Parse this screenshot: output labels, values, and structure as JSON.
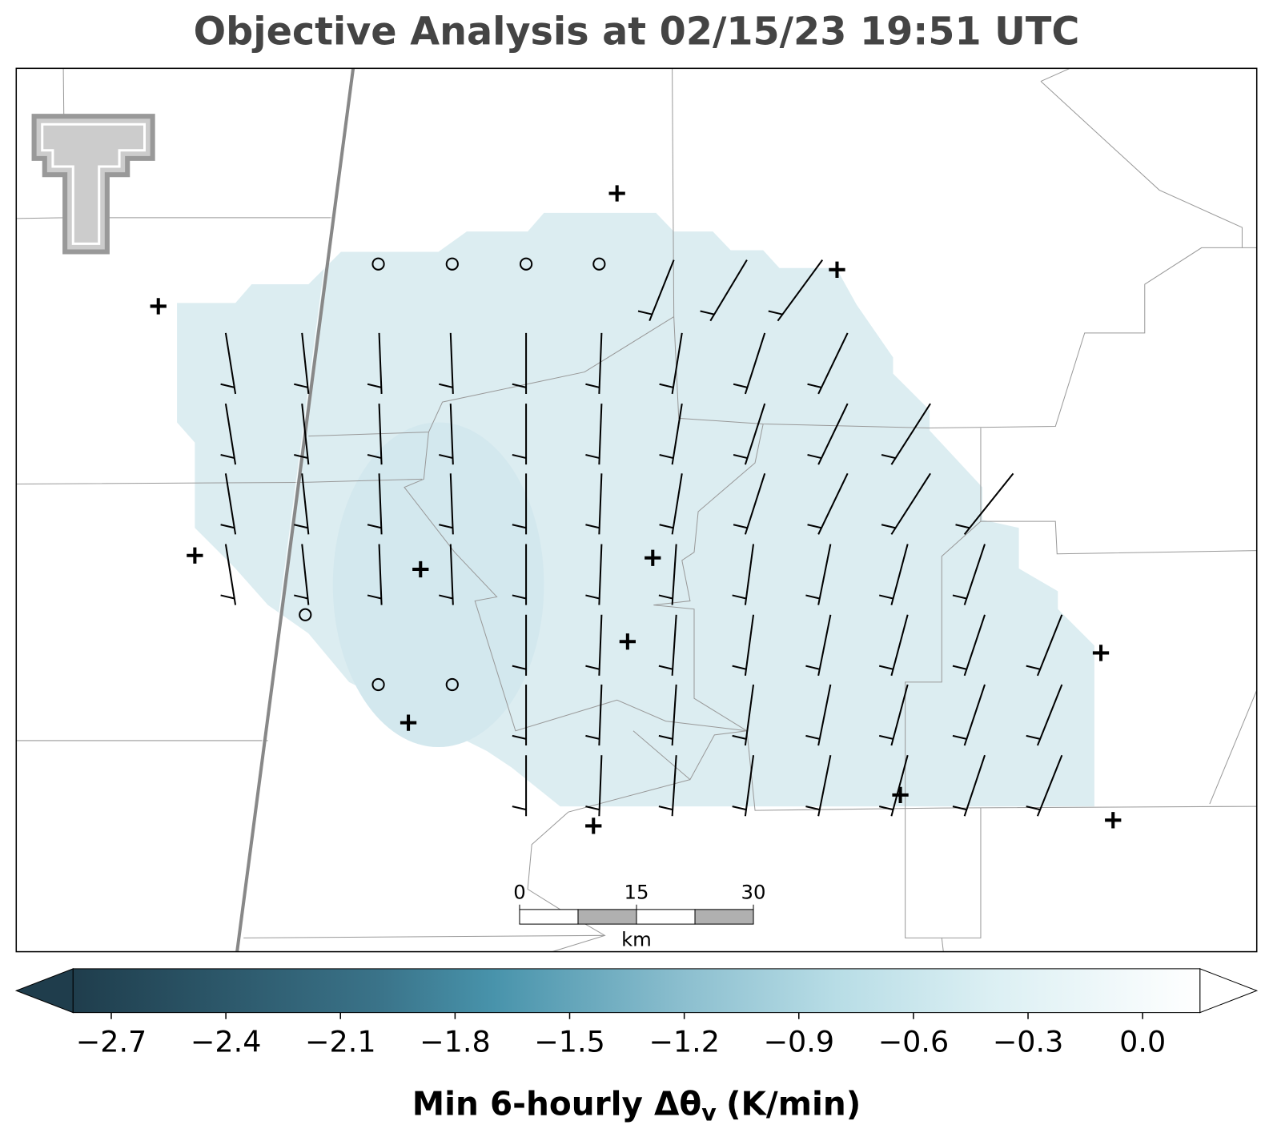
{
  "title": "Objective Analysis at 02/15/23 19:51 UTC",
  "colorbar": {
    "label": {
      "main": "Min 6-hourly Δθ",
      "subscript": "v",
      "units": "(K/min)"
    },
    "range": [
      -2.8,
      0.15
    ],
    "extend": "both",
    "ticks": [
      {
        "value": -2.7,
        "label": "−2.7"
      },
      {
        "value": -2.4,
        "label": "−2.4"
      },
      {
        "value": -2.1,
        "label": "−2.1"
      },
      {
        "value": -1.8,
        "label": "−1.8"
      },
      {
        "value": -1.5,
        "label": "−1.5"
      },
      {
        "value": -1.2,
        "label": "−1.2"
      },
      {
        "value": -0.9,
        "label": "−0.9"
      },
      {
        "value": -0.6,
        "label": "−0.6"
      },
      {
        "value": -0.3,
        "label": "−0.3"
      },
      {
        "value": 0,
        "label": "0.0"
      }
    ],
    "colormap": [
      {
        "value": -2.8,
        "color": "#1f3d4c"
      },
      {
        "value": -2.0,
        "color": "#3a7389"
      },
      {
        "value": -1.7,
        "color": "#4893ab"
      },
      {
        "value": -1.2,
        "color": "#8cbfcf"
      },
      {
        "value": -0.8,
        "color": "#b8dde6"
      },
      {
        "value": -0.4,
        "color": "#dbeff3"
      },
      {
        "value": 0.15,
        "color": "#ffffff"
      }
    ]
  },
  "scale_bar": {
    "ticks": [
      0,
      15,
      30
    ],
    "unit": "km"
  }
}
